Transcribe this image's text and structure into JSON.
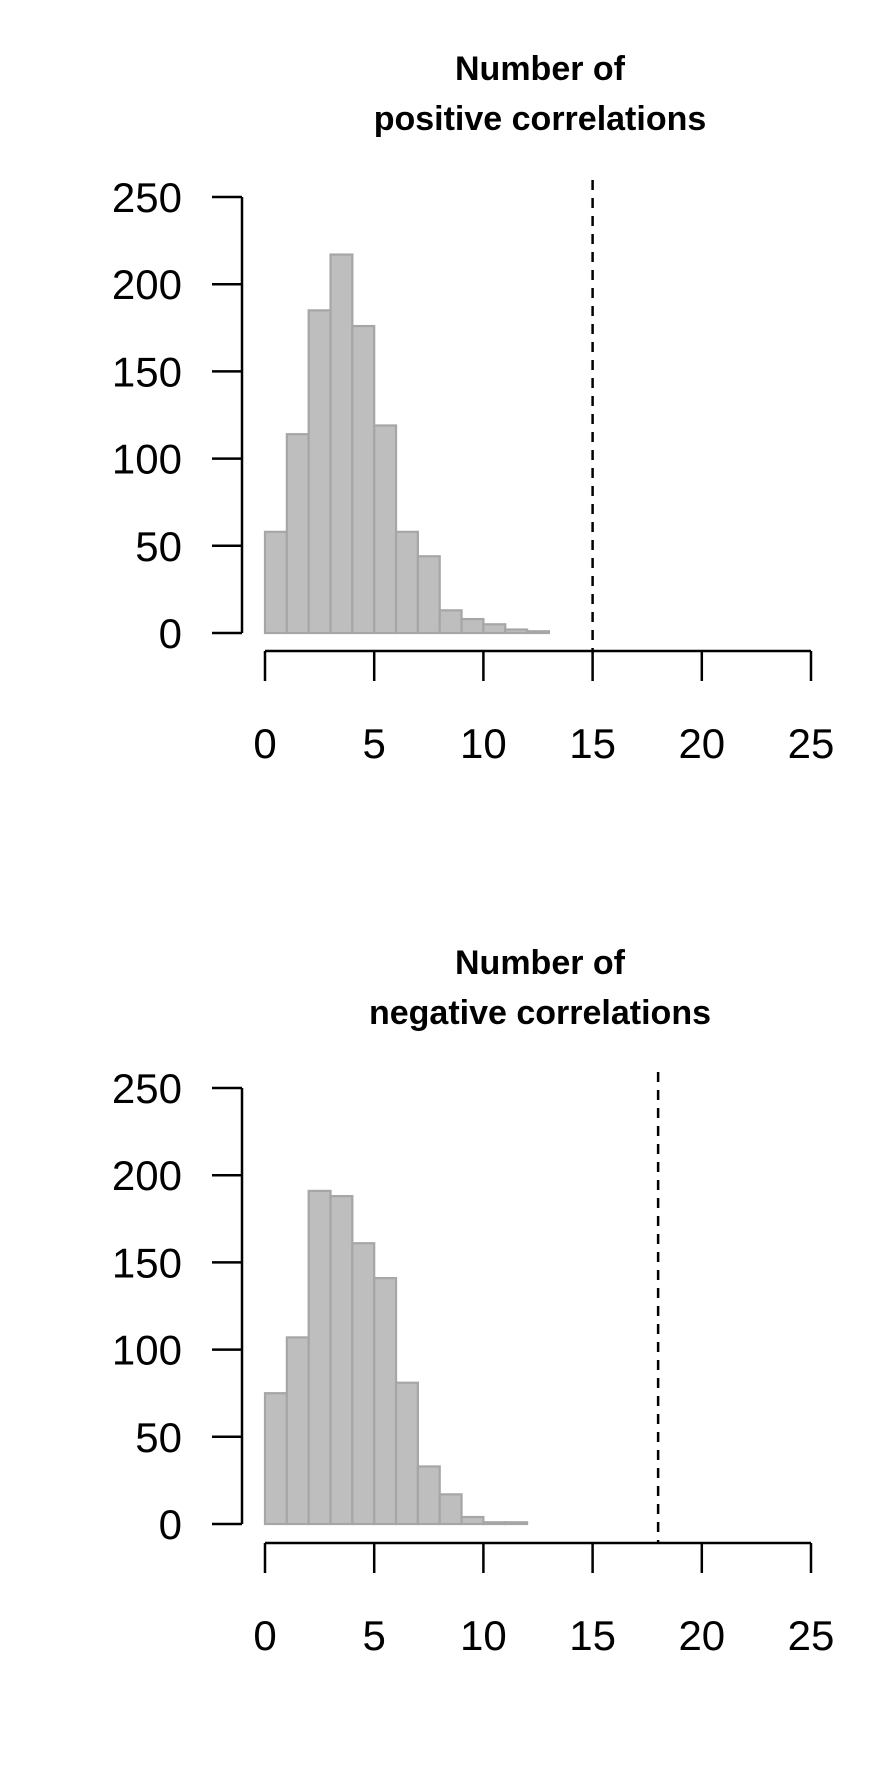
{
  "chart_data": [
    {
      "type": "bar",
      "title_line1": "Number of",
      "title_line2": "positive correlations",
      "xlabel": "",
      "ylabel": "",
      "bin_width": 1,
      "bins_start": [
        0,
        1,
        2,
        3,
        4,
        5,
        6,
        7,
        8,
        9,
        10,
        11,
        12
      ],
      "values": [
        58,
        114,
        185,
        217,
        176,
        119,
        58,
        44,
        13,
        8,
        5,
        2,
        1
      ],
      "reference_line_x": 15,
      "xlim": [
        0,
        25
      ],
      "ylim": [
        0,
        250
      ],
      "x_ticks": [
        0,
        5,
        10,
        15,
        20,
        25
      ],
      "y_ticks": [
        0,
        50,
        100,
        150,
        200,
        250
      ],
      "x_tick_labels": [
        "0",
        "5",
        "10",
        "15",
        "20",
        "25"
      ],
      "y_tick_labels": [
        "0",
        "50",
        "100",
        "150",
        "200",
        "250"
      ],
      "bar_fill": "#bebebe",
      "bar_stroke": "#a6a6a6",
      "grid": false,
      "legend": "none"
    },
    {
      "type": "bar",
      "title_line1": "Number of",
      "title_line2": "negative correlations",
      "xlabel": "",
      "ylabel": "",
      "bin_width": 1,
      "bins_start": [
        0,
        1,
        2,
        3,
        4,
        5,
        6,
        7,
        8,
        9,
        10,
        11
      ],
      "values": [
        75,
        107,
        191,
        188,
        161,
        141,
        81,
        33,
        17,
        4,
        1,
        1
      ],
      "reference_line_x": 18,
      "xlim": [
        0,
        25
      ],
      "ylim": [
        0,
        250
      ],
      "x_ticks": [
        0,
        5,
        10,
        15,
        20,
        25
      ],
      "y_ticks": [
        0,
        50,
        100,
        150,
        200,
        250
      ],
      "x_tick_labels": [
        "0",
        "5",
        "10",
        "15",
        "20",
        "25"
      ],
      "y_tick_labels": [
        "0",
        "50",
        "100",
        "150",
        "200",
        "250"
      ],
      "bar_fill": "#bebebe",
      "bar_stroke": "#a6a6a6",
      "grid": false,
      "legend": "none"
    }
  ]
}
